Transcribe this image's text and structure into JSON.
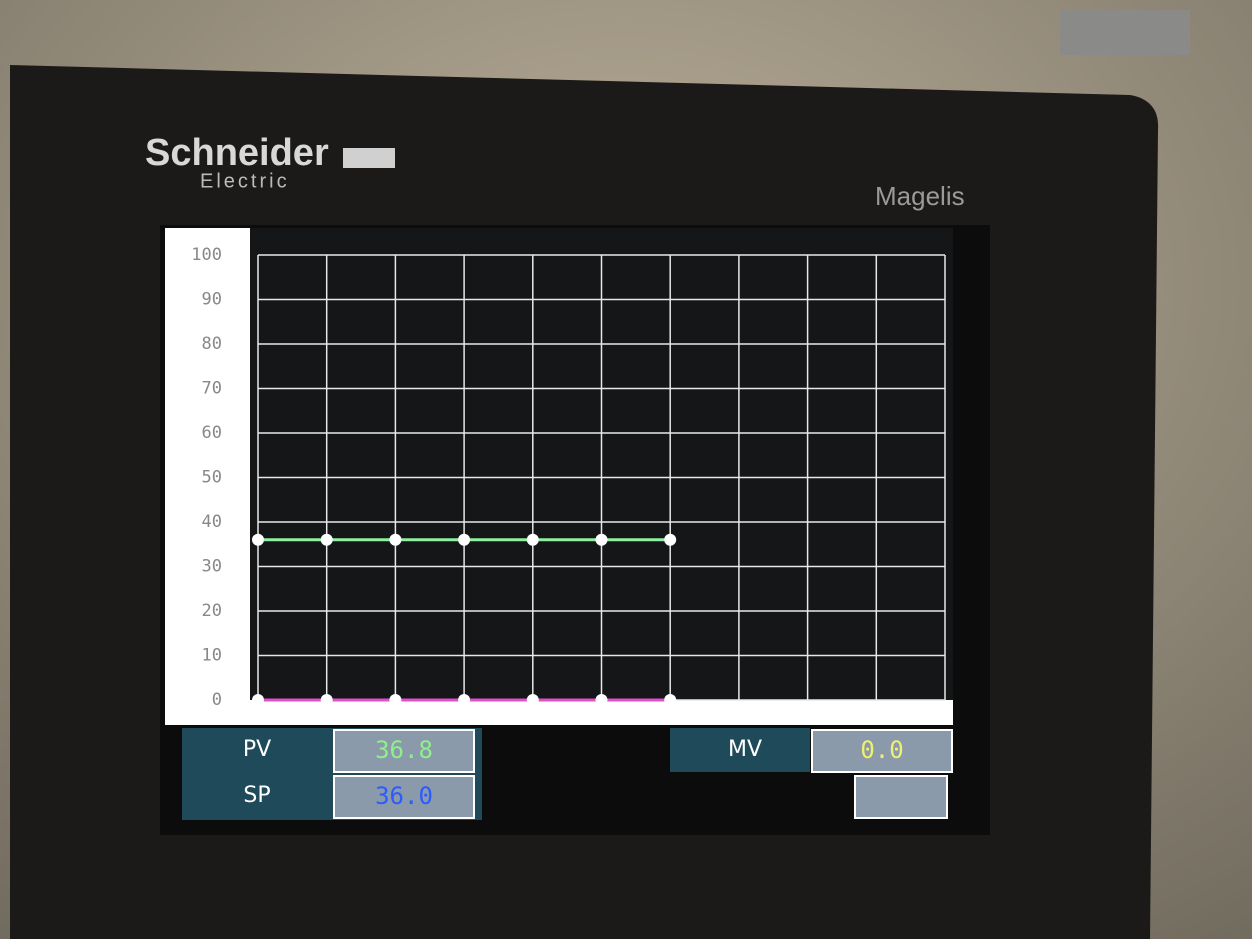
{
  "brand": {
    "name": "Schneider",
    "sub": "Electric",
    "model": "Magelis"
  },
  "chart_data": {
    "type": "line",
    "x": [
      0,
      1,
      2,
      3,
      4,
      5,
      6
    ],
    "xlim": [
      0,
      10
    ],
    "xticks": [
      0,
      1,
      2,
      3,
      4,
      5,
      6,
      7,
      8,
      9,
      10
    ],
    "ylim": [
      0,
      100
    ],
    "yticks": [
      0,
      10,
      20,
      30,
      40,
      50,
      60,
      70,
      80,
      90,
      100
    ],
    "grid": true,
    "series": [
      {
        "color": "#8ef0a0",
        "values": [
          36,
          36,
          36,
          36,
          36,
          36,
          36
        ]
      },
      {
        "color": "#e050c8",
        "values": [
          0,
          0,
          0,
          0,
          0,
          0,
          0
        ]
      }
    ]
  },
  "readouts": [
    {
      "label": "PV",
      "value": "36.8",
      "color": "#8ef08a"
    },
    {
      "label": "SP",
      "value": "36.0",
      "color": "#2a5cff"
    },
    {
      "label": "MV",
      "value": "0.0",
      "color": "#f0f070"
    }
  ]
}
